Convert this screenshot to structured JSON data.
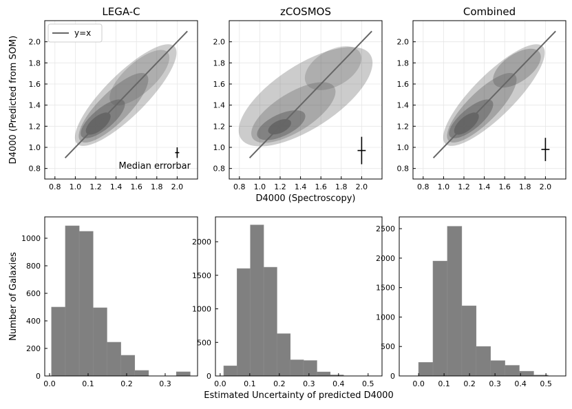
{
  "chart_data": [
    {
      "type": "density",
      "title": "LEGA-C",
      "ylabel": "D4000 (Predicted from SOM)",
      "annotation": "Median errorbar",
      "xlim": [
        0.7,
        2.2
      ],
      "ylim": [
        0.7,
        2.2
      ],
      "xticks": [
        0.8,
        {
          "value": 1,
          "label": "1.0"
        },
        1.2,
        1.4,
        1.6,
        1.8,
        {
          "value": 2,
          "label": "2.0"
        }
      ],
      "yticks": [
        0.8,
        {
          "value": 1,
          "label": "1.0"
        },
        1.2,
        1.4,
        1.6,
        1.8,
        {
          "value": 2,
          "label": "2.0"
        }
      ],
      "grid": true,
      "legend": "upper left",
      "series": [
        {
          "name": "y=x",
          "color": "#666666",
          "x": [
            0.9,
            2.1
          ],
          "values": [
            0.9,
            2.1
          ]
        }
      ],
      "errorbar": {
        "x": [
          2.0
        ],
        "values": [
          0.95
        ],
        "xerr": [
          0.02
        ],
        "yerr": [
          0.05
        ],
        "color": "#000000"
      }
    },
    {
      "type": "density",
      "title": "zCOSMOS",
      "xlabel": "D4000 (Spectroscopy)",
      "xlim": [
        0.7,
        2.2
      ],
      "ylim": [
        0.7,
        2.2
      ],
      "xticks": [
        0.8,
        {
          "value": 1,
          "label": "1.0"
        },
        1.2,
        1.4,
        1.6,
        1.8,
        {
          "value": 2,
          "label": "2.0"
        }
      ],
      "yticks": [
        0.8,
        {
          "value": 1,
          "label": "1.0"
        },
        1.2,
        1.4,
        1.6,
        1.8,
        {
          "value": 2,
          "label": "2.0"
        }
      ],
      "grid": true,
      "series": [
        {
          "color": "#666666",
          "x": [
            0.9,
            2.1
          ],
          "values": [
            0.9,
            2.1
          ]
        }
      ],
      "errorbar": {
        "x": [
          2.0
        ],
        "values": [
          0.97
        ],
        "xerr": [
          0.04
        ],
        "yerr": [
          0.13
        ],
        "color": "#000000"
      }
    },
    {
      "type": "density",
      "title": "Combined",
      "xlim": [
        0.7,
        2.2
      ],
      "ylim": [
        0.7,
        2.2
      ],
      "xticks": [
        0.8,
        {
          "value": 1,
          "label": "1.0"
        },
        1.2,
        1.4,
        1.6,
        1.8,
        {
          "value": 2,
          "label": "2.0"
        }
      ],
      "yticks": [
        0.8,
        {
          "value": 1,
          "label": "1.0"
        },
        1.2,
        1.4,
        1.6,
        1.8,
        {
          "value": 2,
          "label": "2.0"
        }
      ],
      "grid": true,
      "series": [
        {
          "color": "#666666",
          "x": [
            0.9,
            2.1
          ],
          "values": [
            0.9,
            2.1
          ]
        }
      ],
      "errorbar": {
        "x": [
          2.0
        ],
        "values": [
          0.98
        ],
        "xerr": [
          0.04
        ],
        "yerr": [
          0.11
        ],
        "color": "#000000"
      }
    },
    {
      "type": "histogram",
      "ylabel": "Number of Galaxies",
      "color": "#808080",
      "bins": [
        0.005,
        0.041,
        0.077,
        0.113,
        0.149,
        0.185,
        0.221,
        0.257,
        0.293,
        0.329,
        0.365
      ],
      "values": [
        500,
        1090,
        1050,
        495,
        245,
        150,
        40,
        0,
        0,
        30
      ],
      "xlim": [
        -0.0125,
        0.384
      ],
      "ylim": [
        0,
        1155
      ],
      "xticks": [
        {
          "value": 0,
          "label": "0.0"
        },
        0.1,
        0.2,
        0.3
      ],
      "yticks": [
        0,
        200,
        400,
        600,
        800,
        1000
      ]
    },
    {
      "type": "histogram",
      "xlabel": "Estimated Uncertainty of predicted D4000",
      "color": "#808080",
      "bins": [
        0.012,
        0.057,
        0.102,
        0.147,
        0.192,
        0.237,
        0.282,
        0.327,
        0.372,
        0.417,
        0.462
      ],
      "values": [
        150,
        1600,
        2250,
        1620,
        630,
        240,
        230,
        60,
        15,
        0
      ],
      "xlim": [
        -0.016,
        0.547
      ],
      "ylim": [
        0,
        2370
      ],
      "xticks": [
        {
          "value": 0,
          "label": "0.0"
        },
        0.1,
        0.2,
        0.3,
        0.4,
        0.5
      ],
      "yticks": [
        0,
        500,
        1000,
        1500,
        2000
      ]
    },
    {
      "type": "histogram",
      "color": "#808080",
      "bins": [
        0.0,
        0.0565,
        0.113,
        0.1695,
        0.226,
        0.2825,
        0.339,
        0.3955,
        0.452,
        0.5085
      ],
      "values": [
        230,
        1950,
        2540,
        1190,
        500,
        260,
        180,
        80,
        15
      ],
      "xlim": [
        -0.076,
        0.578
      ],
      "ylim": [
        0,
        2700
      ],
      "xticks": [
        {
          "value": 0,
          "label": "0.0"
        },
        0.1,
        0.2,
        0.3,
        0.4,
        0.5
      ],
      "yticks": [
        0,
        500,
        1000,
        1500,
        2000,
        2500
      ]
    }
  ]
}
